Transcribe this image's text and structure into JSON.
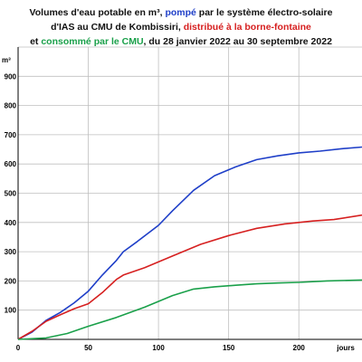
{
  "title": {
    "line1_a": "Volumes d'eau potable en m³, ",
    "line1_b": "pompé",
    "line1_c": " par le système électro-solaire",
    "line2_a": "d'IAS au CMU de Kombissiri, ",
    "line2_b": "distribué à la borne-fontaine",
    "line3_a": "consommé par le CMU",
    "line3_b": ", du 28 janvier 2022 au 30 septembre 2022",
    "line3_prefix": "et ",
    "color_pompe": "#1f3fc8",
    "color_distribue": "#d62020",
    "color_consomme": "#1aa04a"
  },
  "chart_data": {
    "type": "line",
    "title": "Volumes d'eau potable en m³, pompé par le système électro-solaire d'IAS au CMU de Kombissiri, distribué à la borne-fontaine et consommé par le CMU, du 28 janvier 2022 au 30 septembre 2022",
    "xlabel": "jours",
    "ylabel": "m³",
    "x_ticks": [
      0,
      50,
      100,
      150,
      200
    ],
    "xlim": [
      0,
      245
    ],
    "ylim": [
      0,
      1000
    ],
    "y_ticks": [
      100,
      200,
      300,
      400,
      500,
      600,
      700,
      800,
      900
    ],
    "y_tick_labels": [
      "100",
      "200",
      "300",
      "400",
      "500",
      "600",
      "700",
      "800",
      "900"
    ],
    "grid": true,
    "series": [
      {
        "name": "pompé",
        "color": "#1f3fc8",
        "points": [
          [
            0,
            0
          ],
          [
            10,
            25
          ],
          [
            20,
            65
          ],
          [
            30,
            92
          ],
          [
            40,
            125
          ],
          [
            50,
            165
          ],
          [
            60,
            220
          ],
          [
            70,
            270
          ],
          [
            75,
            300
          ],
          [
            85,
            335
          ],
          [
            100,
            390
          ],
          [
            110,
            440
          ],
          [
            125,
            510
          ],
          [
            140,
            560
          ],
          [
            155,
            590
          ],
          [
            170,
            615
          ],
          [
            185,
            628
          ],
          [
            200,
            638
          ],
          [
            215,
            644
          ],
          [
            230,
            652
          ],
          [
            245,
            658
          ]
        ]
      },
      {
        "name": "distribué à la borne-fontaine",
        "color": "#d62020",
        "points": [
          [
            0,
            0
          ],
          [
            10,
            28
          ],
          [
            20,
            62
          ],
          [
            30,
            84
          ],
          [
            40,
            105
          ],
          [
            50,
            122
          ],
          [
            60,
            160
          ],
          [
            70,
            205
          ],
          [
            75,
            220
          ],
          [
            90,
            245
          ],
          [
            110,
            285
          ],
          [
            130,
            325
          ],
          [
            150,
            355
          ],
          [
            170,
            380
          ],
          [
            190,
            395
          ],
          [
            210,
            405
          ],
          [
            225,
            410
          ],
          [
            245,
            425
          ]
        ]
      },
      {
        "name": "consommé par le CMU",
        "color": "#1aa04a",
        "points": [
          [
            0,
            0
          ],
          [
            20,
            5
          ],
          [
            35,
            20
          ],
          [
            50,
            45
          ],
          [
            70,
            75
          ],
          [
            90,
            110
          ],
          [
            110,
            150
          ],
          [
            125,
            172
          ],
          [
            140,
            180
          ],
          [
            155,
            185
          ],
          [
            170,
            190
          ],
          [
            185,
            193
          ],
          [
            200,
            195
          ],
          [
            220,
            200
          ],
          [
            245,
            203
          ]
        ]
      }
    ]
  }
}
